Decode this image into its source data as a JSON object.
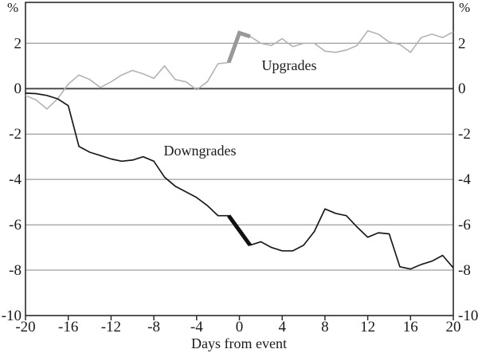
{
  "chart_data": {
    "type": "line",
    "title": "",
    "xlabel": "Days from event",
    "ylabel": "%",
    "x_axis": {
      "label": "Days from event",
      "min": -20,
      "max": 20,
      "ticks": [
        -20,
        -16,
        -12,
        -8,
        -4,
        0,
        4,
        8,
        12,
        16,
        20
      ]
    },
    "y_axis": {
      "unit_label": "%",
      "min": -10,
      "max": 3.8,
      "ticks": [
        2,
        0,
        -2,
        -4,
        -6,
        -8,
        -10
      ],
      "grid": true,
      "labels_both_sides": true
    },
    "x": [
      -20,
      -19,
      -18,
      -17,
      -16,
      -15,
      -14,
      -13,
      -12,
      -11,
      -10,
      -9,
      -8,
      -7,
      -6,
      -5,
      -4,
      -3,
      -2,
      -1,
      0,
      1,
      2,
      3,
      4,
      5,
      6,
      7,
      8,
      9,
      10,
      11,
      12,
      13,
      14,
      15,
      16,
      17,
      18,
      19,
      20
    ],
    "event_highlight": {
      "from_day": -1,
      "to_day": 1
    },
    "series": [
      {
        "name": "Upgrades",
        "color": "#b3b3b3",
        "highlight_color": "#999999",
        "line_width": 1.6,
        "highlight_width": 5,
        "values": [
          -0.3,
          -0.5,
          -0.9,
          -0.45,
          0.2,
          0.6,
          0.4,
          0.05,
          0.3,
          0.6,
          0.8,
          0.65,
          0.45,
          1.0,
          0.4,
          0.3,
          -0.05,
          0.3,
          1.1,
          1.15,
          2.45,
          2.3,
          2.0,
          1.9,
          2.2,
          1.85,
          2.0,
          2.0,
          1.65,
          1.6,
          1.7,
          1.9,
          2.55,
          2.4,
          2.05,
          1.95,
          1.6,
          2.25,
          2.4,
          2.25,
          2.5
        ]
      },
      {
        "name": "Downgrades",
        "color": "#1a1a1a",
        "highlight_color": "#111111",
        "line_width": 1.7,
        "highlight_width": 5,
        "values": [
          -0.2,
          -0.22,
          -0.3,
          -0.45,
          -0.75,
          -2.55,
          -2.8,
          -2.95,
          -3.1,
          -3.2,
          -3.15,
          -3.0,
          -3.2,
          -3.9,
          -4.3,
          -4.55,
          -4.8,
          -5.15,
          -5.6,
          -5.6,
          -6.25,
          -6.9,
          -6.75,
          -7.0,
          -7.15,
          -7.15,
          -6.9,
          -6.3,
          -5.3,
          -5.5,
          -5.6,
          -6.1,
          -6.55,
          -6.35,
          -6.4,
          -7.85,
          -7.95,
          -7.75,
          -7.6,
          -7.35,
          -7.9
        ]
      }
    ],
    "style": {
      "grid_color": "#858585",
      "zero_line_color": "#4d4d4d",
      "frame_color": "#2b2b2b",
      "background": "#ffffff"
    }
  }
}
